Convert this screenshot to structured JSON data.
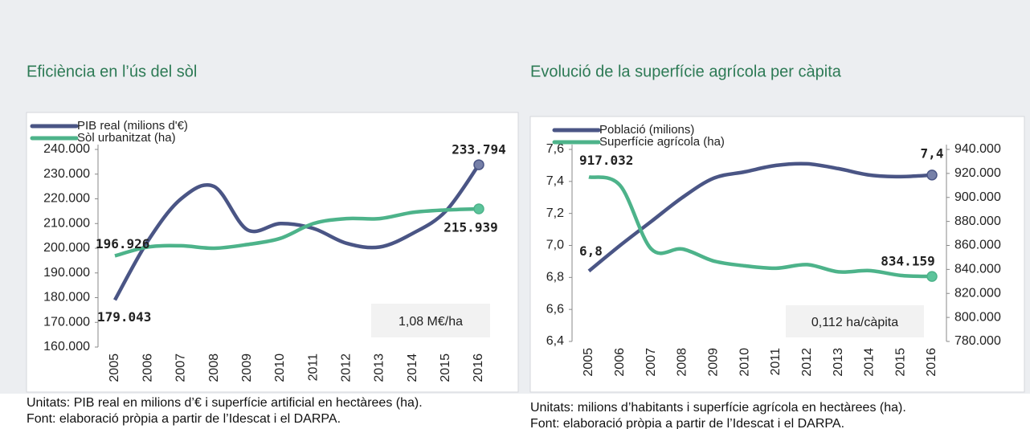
{
  "chart_data": [
    {
      "type": "line",
      "title": "Eficiència en l’ús del sòl",
      "categories": [
        "2005",
        "2006",
        "2007",
        "2008",
        "2009",
        "2010",
        "2011",
        "2012",
        "2013",
        "2014",
        "2015",
        "2016"
      ],
      "series": [
        {
          "name": "PIB real (milions d'€)",
          "color": "#4a5585",
          "label_color": "#7680a8",
          "values": [
            179043,
            203000,
            220000,
            225000,
            207500,
            210000,
            208000,
            202000,
            200500,
            206000,
            215000,
            233794
          ],
          "value_labels": [
            "179.043",
            null,
            null,
            null,
            null,
            null,
            null,
            null,
            null,
            null,
            null,
            "233.794"
          ]
        },
        {
          "name": "Sòl urbanitzat (ha)",
          "color": "#4db38a",
          "label_color": "#5cc49b",
          "values": [
            196926,
            200500,
            201000,
            200000,
            201500,
            204000,
            210000,
            212000,
            212000,
            214500,
            215500,
            215939
          ],
          "value_labels": [
            "196.926",
            null,
            null,
            null,
            null,
            null,
            null,
            null,
            null,
            null,
            null,
            "215.939"
          ]
        }
      ],
      "ylim": [
        160000,
        240000
      ],
      "yticks": [
        {
          "value": 160000,
          "label": "160.000"
        },
        {
          "value": 170000,
          "label": "170.000"
        },
        {
          "value": 180000,
          "label": "180.000"
        },
        {
          "value": 190000,
          "label": "190.000"
        },
        {
          "value": 200000,
          "label": "200.000"
        },
        {
          "value": 210000,
          "label": "210.000"
        },
        {
          "value": 220000,
          "label": "220.000"
        },
        {
          "value": 230000,
          "label": "230.000"
        },
        {
          "value": 240000,
          "label": "240.000"
        }
      ],
      "annotation": "1,08 M€/ha",
      "notes": [
        "Unitats: PIB real en milions d’€ i superfície artificial en hectàrees (ha).",
        "Font: elaboració pròpia a partir de l’Idescat i el DARPA."
      ]
    },
    {
      "type": "line",
      "title": "Evolució de la superfície agrícola per càpita",
      "categories": [
        "2005",
        "2006",
        "2007",
        "2008",
        "2009",
        "2010",
        "2011",
        "2012",
        "2013",
        "2014",
        "2015",
        "2016"
      ],
      "series": [
        {
          "name": "Població  (milions)",
          "color": "#4a5585",
          "label_color": "#7680a8",
          "values": [
            6.84,
            7.0,
            7.15,
            7.3,
            7.42,
            7.46,
            7.5,
            7.51,
            7.48,
            7.44,
            7.43,
            7.44
          ],
          "value_labels": [
            "6,8",
            null,
            null,
            null,
            null,
            null,
            null,
            null,
            null,
            null,
            null,
            "7,4"
          ]
        },
        {
          "name": "Superfície agrícola (ha)",
          "color": "#4db38a",
          "label_color": "#5cc49b",
          "axis": "y2",
          "values": [
            917032,
            910000,
            857000,
            857000,
            847000,
            843000,
            841000,
            844000,
            838000,
            839000,
            835000,
            834159
          ],
          "value_labels": [
            "917.032",
            null,
            null,
            null,
            null,
            null,
            null,
            null,
            null,
            null,
            null,
            "834.159"
          ]
        }
      ],
      "ylim": [
        6.4,
        7.6
      ],
      "yticks": [
        {
          "value": 6.4,
          "label": "6,4"
        },
        {
          "value": 6.6,
          "label": "6,6"
        },
        {
          "value": 6.8,
          "label": "6,8"
        },
        {
          "value": 7.0,
          "label": "7,0"
        },
        {
          "value": 7.2,
          "label": "7,2"
        },
        {
          "value": 7.4,
          "label": "7,4"
        },
        {
          "value": 7.6,
          "label": "7,6"
        }
      ],
      "y2lim": [
        780000,
        940000
      ],
      "y2ticks": [
        {
          "value": 780000,
          "label": "780.000"
        },
        {
          "value": 800000,
          "label": "800.000"
        },
        {
          "value": 820000,
          "label": "820.000"
        },
        {
          "value": 840000,
          "label": "840.000"
        },
        {
          "value": 860000,
          "label": "860.000"
        },
        {
          "value": 880000,
          "label": "880.000"
        },
        {
          "value": 900000,
          "label": "900.000"
        },
        {
          "value": 920000,
          "label": "920.000"
        },
        {
          "value": 940000,
          "label": "940.000"
        }
      ],
      "annotation": "0,112 ha/càpita",
      "notes": [
        "Unitats: milions d’habitants i superfície agrícola en hectàrees (ha).",
        "Font: elaboració pròpia a partir de l’Idescat i el DARPA."
      ]
    }
  ]
}
